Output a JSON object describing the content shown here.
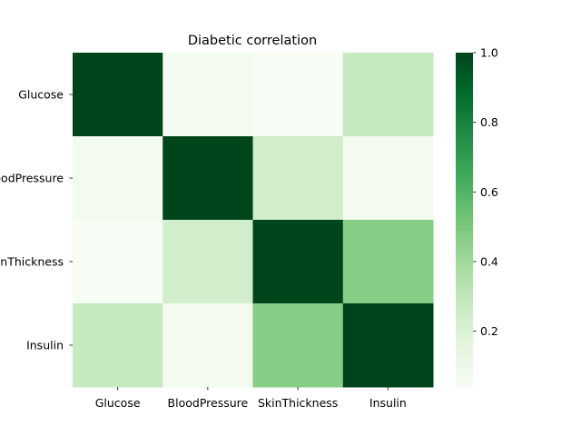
{
  "chart_data": {
    "type": "heatmap",
    "title": "Diabetic correlation",
    "xlabel": "",
    "ylabel": "",
    "x_categories": [
      "Glucose",
      "BloodPressure",
      "SkinThickness",
      "Insulin"
    ],
    "y_categories": [
      "Glucose",
      "BloodPressure",
      "SkinThickness",
      "Insulin"
    ],
    "values": [
      [
        1.0,
        0.07,
        0.04,
        0.28
      ],
      [
        0.07,
        1.0,
        0.24,
        0.07
      ],
      [
        0.04,
        0.24,
        1.0,
        0.47
      ],
      [
        0.28,
        0.07,
        0.47,
        1.0
      ]
    ],
    "colorbar": {
      "vmin": 0.04,
      "vmax": 1.0,
      "ticks": [
        0.2,
        0.4,
        0.6,
        0.8,
        1.0
      ],
      "tick_labels": [
        "0.2",
        "0.4",
        "0.6",
        "0.8",
        "1.0"
      ],
      "colormap": "Greens"
    },
    "grid": false,
    "legend": "colorbar-right"
  }
}
